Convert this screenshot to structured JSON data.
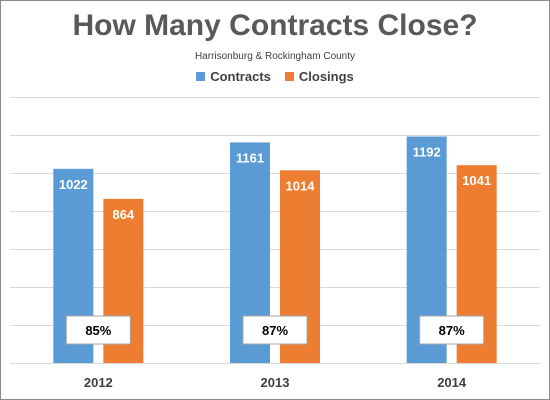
{
  "chart_data": {
    "type": "bar",
    "title": "How Many Contracts Close?",
    "subtitle": "Harrisonburg & Rockingham County",
    "categories": [
      "2012",
      "2013",
      "2014"
    ],
    "series": [
      {
        "name": "Contracts",
        "color": "#5b9bd5",
        "values": [
          1022,
          1161,
          1192
        ]
      },
      {
        "name": "Closings",
        "color": "#ed7d31",
        "values": [
          864,
          1014,
          1041
        ]
      }
    ],
    "annotations": [
      "85%",
      "87%",
      "87%"
    ],
    "ylim": [
      0,
      1400
    ],
    "grid": true,
    "legend": "top-center",
    "xlabel": "",
    "ylabel": ""
  }
}
